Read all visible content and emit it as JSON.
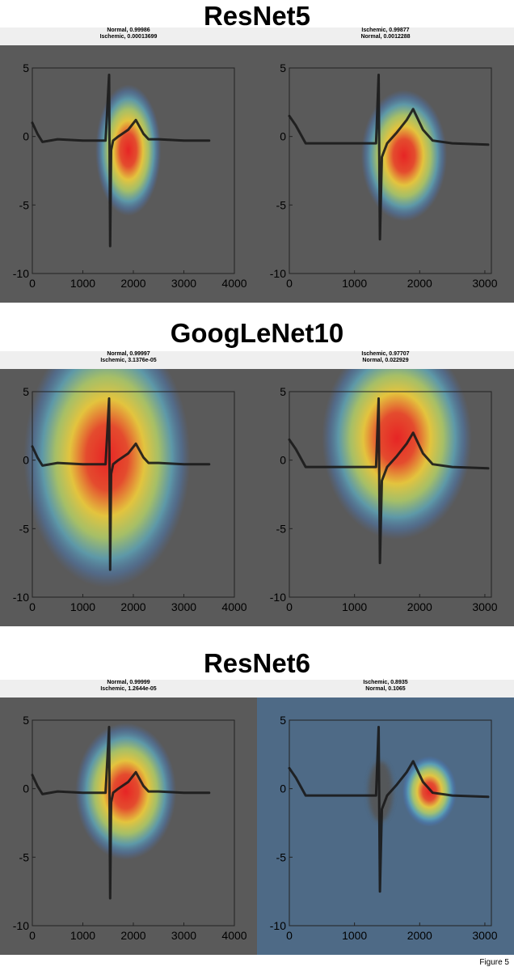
{
  "figure_label": "Figure 5",
  "colors": {
    "background": "#5a5a5a",
    "signal": "#1a1a1a",
    "blue_bg": "#4e6a86",
    "text": "#000000"
  },
  "sections": [
    {
      "title": "ResNet5",
      "panels": [
        {
          "caption1": "Normal, 0.99986",
          "caption2": "Ischemic, 0.00013699",
          "beat": "a",
          "blue": false,
          "heat": [
            {
              "x": 1900,
              "y": -1,
              "rx": 650,
              "ry": 4.8,
              "spread": 1.0
            }
          ]
        },
        {
          "caption1": "Ischemic, 0.99877",
          "caption2": "Normal, 0.0012288",
          "beat": "b",
          "blue": false,
          "heat": [
            {
              "x": 1760,
              "y": -1.4,
              "rx": 660,
              "ry": 4.8,
              "spread": 1.0
            }
          ]
        }
      ]
    },
    {
      "title": "GoogLeNet10",
      "panels": [
        {
          "caption1": "Normal, 0.99997",
          "caption2": "Ischemic, 3.1376e-05",
          "beat": "a",
          "blue": false,
          "heat": [
            {
              "x": 1480,
              "y": 0.2,
              "rx": 1650,
              "ry": 9.5,
              "spread": 1.0
            }
          ]
        },
        {
          "caption1": "Ischemic, 0.97707",
          "caption2": "Normal, 0.022929",
          "beat": "b",
          "blue": false,
          "heat": [
            {
              "x": 1650,
              "y": 1.6,
              "rx": 1150,
              "ry": 7.4,
              "spread": 1.0
            }
          ]
        }
      ]
    },
    {
      "title": "ResNet6",
      "panels": [
        {
          "caption1": "Normal, 0.99999",
          "caption2": "Ischemic, 1.2644e-05",
          "beat": "a",
          "blue": false,
          "heat": [
            {
              "x": 1850,
              "y": -0.2,
              "rx": 1000,
              "ry": 5.0,
              "spread": 1.0
            }
          ]
        },
        {
          "caption1": "Ischemic, 0.8935",
          "caption2": "Normal, 0.1065",
          "beat": "b",
          "blue": true,
          "heat": [
            {
              "x": 2150,
              "y": -0.2,
              "rx": 420,
              "ry": 2.6,
              "spread": 1.0
            }
          ]
        }
      ]
    }
  ],
  "chart_data": [
    {
      "type": "heatmap",
      "title": "",
      "panel": "ResNet5 left",
      "xlim": [
        0,
        4000
      ],
      "ylim": [
        -10,
        5
      ],
      "xticks": [
        0,
        1000,
        2000,
        3000,
        4000
      ],
      "yticks": [
        5,
        0,
        -5,
        -10
      ],
      "series": [
        {
          "x": [
            0,
            100,
            200,
            500,
            1000,
            1450,
            1520,
            1540,
            1560,
            1600,
            1700,
            1900,
            2050,
            2200,
            2300,
            2500,
            3000,
            3500
          ],
          "y": [
            1.0,
            0.2,
            -0.4,
            -0.2,
            -0.3,
            -0.3,
            4.5,
            -8.0,
            -1.0,
            -0.3,
            0.0,
            0.5,
            1.2,
            0.2,
            -0.2,
            -0.2,
            -0.3,
            -0.3
          ]
        }
      ]
    },
    {
      "type": "heatmap",
      "title": "",
      "panel": "ResNet5 right",
      "xlim": [
        0,
        3100
      ],
      "ylim": [
        -10,
        5
      ],
      "xticks": [
        0,
        1000,
        2000,
        3000
      ],
      "yticks": [
        5,
        0,
        -5,
        -10
      ],
      "series": [
        {
          "x": [
            0,
            100,
            250,
            600,
            1000,
            1330,
            1370,
            1390,
            1420,
            1500,
            1650,
            1800,
            1900,
            2050,
            2200,
            2500,
            3050
          ],
          "y": [
            1.5,
            0.8,
            -0.5,
            -0.5,
            -0.5,
            -0.5,
            4.5,
            -7.5,
            -1.5,
            -0.5,
            0.3,
            1.2,
            2.0,
            0.5,
            -0.3,
            -0.5,
            -0.6
          ]
        }
      ]
    },
    {
      "type": "heatmap",
      "title": "",
      "panel": "GoogLeNet10 left",
      "xlim": [
        0,
        4000
      ],
      "ylim": [
        -10,
        5
      ],
      "xticks": [
        0,
        1000,
        2000,
        3000,
        4000
      ],
      "yticks": [
        5,
        0,
        -5,
        -10
      ],
      "series": [
        {
          "x": [
            0,
            100,
            200,
            500,
            1000,
            1450,
            1520,
            1540,
            1560,
            1600,
            1700,
            1900,
            2050,
            2200,
            2300,
            2500,
            3000,
            3500
          ],
          "y": [
            1.0,
            0.2,
            -0.4,
            -0.2,
            -0.3,
            -0.3,
            4.5,
            -8.0,
            -1.0,
            -0.3,
            0.0,
            0.5,
            1.2,
            0.2,
            -0.2,
            -0.2,
            -0.3,
            -0.3
          ]
        }
      ]
    },
    {
      "type": "heatmap",
      "title": "",
      "panel": "GoogLeNet10 right",
      "xlim": [
        0,
        3100
      ],
      "ylim": [
        -10,
        5
      ],
      "xticks": [
        0,
        1000,
        2000,
        3000
      ],
      "yticks": [
        5,
        0,
        -5,
        -10
      ],
      "series": [
        {
          "x": [
            0,
            100,
            250,
            600,
            1000,
            1330,
            1370,
            1390,
            1420,
            1500,
            1650,
            1800,
            1900,
            2050,
            2200,
            2500,
            3050
          ],
          "y": [
            1.5,
            0.8,
            -0.5,
            -0.5,
            -0.5,
            -0.5,
            4.5,
            -7.5,
            -1.5,
            -0.5,
            0.3,
            1.2,
            2.0,
            0.5,
            -0.3,
            -0.5,
            -0.6
          ]
        }
      ]
    },
    {
      "type": "heatmap",
      "title": "",
      "panel": "ResNet6 left",
      "xlim": [
        0,
        4000
      ],
      "ylim": [
        -10,
        5
      ],
      "xticks": [
        0,
        1000,
        2000,
        3000,
        4000
      ],
      "yticks": [
        5,
        0,
        -5,
        -10
      ],
      "series": [
        {
          "x": [
            0,
            100,
            200,
            500,
            1000,
            1450,
            1520,
            1540,
            1560,
            1600,
            1700,
            1900,
            2050,
            2200,
            2300,
            2500,
            3000,
            3500
          ],
          "y": [
            1.0,
            0.2,
            -0.4,
            -0.2,
            -0.3,
            -0.3,
            4.5,
            -8.0,
            -1.0,
            -0.3,
            0.0,
            0.5,
            1.2,
            0.2,
            -0.2,
            -0.2,
            -0.3,
            -0.3
          ]
        }
      ]
    },
    {
      "type": "heatmap",
      "title": "",
      "panel": "ResNet6 right",
      "xlim": [
        0,
        3100
      ],
      "ylim": [
        -10,
        5
      ],
      "xticks": [
        0,
        1000,
        2000,
        3000
      ],
      "yticks": [
        5,
        0,
        -5,
        -10
      ],
      "series": [
        {
          "x": [
            0,
            100,
            250,
            600,
            1000,
            1330,
            1370,
            1390,
            1420,
            1500,
            1650,
            1800,
            1900,
            2050,
            2200,
            2500,
            3050
          ],
          "y": [
            1.5,
            0.8,
            -0.5,
            -0.5,
            -0.5,
            -0.5,
            4.5,
            -7.5,
            -1.5,
            -0.5,
            0.3,
            1.2,
            2.0,
            0.5,
            -0.3,
            -0.5,
            -0.6
          ]
        }
      ]
    }
  ]
}
